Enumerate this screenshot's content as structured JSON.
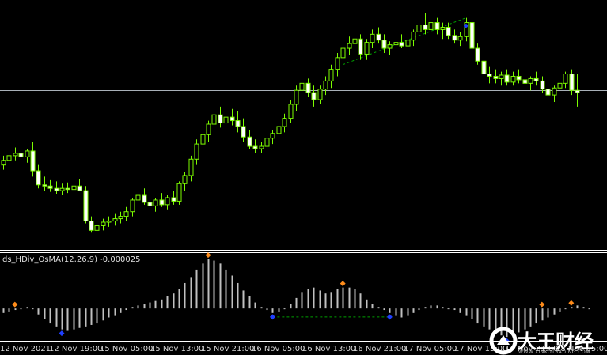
{
  "indicator": {
    "label": "ds_HDiv_OsMA(12,26,9) -0.000025"
  },
  "time_axis": {
    "labels": [
      "12 Nov 2021",
      "12 Nov 19:00",
      "15 Nov 05:00",
      "15 Nov 13:00",
      "15 Nov 21:00",
      "16 Nov 05:00",
      "16 Nov 13:00",
      "16 Nov 21:00",
      "17 Nov 05:00",
      "17 Nov 13:00",
      "17 Nov 21:00",
      "18 Nov 05:00"
    ]
  },
  "watermark": {
    "brand": "大王财经",
    "site": "WWW.XINKOTRADING.COM"
  },
  "colors": {
    "background": "#000000",
    "candle": "#7cfc00",
    "candle_body_up": "#000000",
    "candle_body_down": "#ffffff",
    "histogram": "#c0c0c0",
    "divergence_line": "#00a000",
    "marker_top": "#ff8c1a",
    "marker_bottom": "#1f3fff",
    "horizontal_line": "#a8b0b8",
    "separator": "#ffffff"
  },
  "chart_data": [
    {
      "type": "candlestick",
      "title": "",
      "candles": [
        {
          "o": 110,
          "h": 118,
          "l": 106,
          "c": 114
        },
        {
          "o": 114,
          "h": 122,
          "l": 110,
          "c": 118
        },
        {
          "o": 118,
          "h": 125,
          "l": 114,
          "c": 120
        },
        {
          "o": 120,
          "h": 126,
          "l": 115,
          "c": 117
        },
        {
          "o": 117,
          "h": 124,
          "l": 112,
          "c": 122
        },
        {
          "o": 122,
          "h": 130,
          "l": 100,
          "c": 105
        },
        {
          "o": 105,
          "h": 110,
          "l": 90,
          "c": 93
        },
        {
          "o": 93,
          "h": 100,
          "l": 88,
          "c": 92
        },
        {
          "o": 92,
          "h": 97,
          "l": 87,
          "c": 90
        },
        {
          "o": 90,
          "h": 96,
          "l": 85,
          "c": 88
        },
        {
          "o": 88,
          "h": 94,
          "l": 84,
          "c": 90
        },
        {
          "o": 90,
          "h": 95,
          "l": 86,
          "c": 89
        },
        {
          "o": 89,
          "h": 96,
          "l": 86,
          "c": 92
        },
        {
          "o": 92,
          "h": 98,
          "l": 88,
          "c": 88
        },
        {
          "o": 88,
          "h": 92,
          "l": 60,
          "c": 62
        },
        {
          "o": 62,
          "h": 66,
          "l": 52,
          "c": 54
        },
        {
          "o": 54,
          "h": 62,
          "l": 50,
          "c": 58
        },
        {
          "o": 58,
          "h": 64,
          "l": 54,
          "c": 61
        },
        {
          "o": 61,
          "h": 66,
          "l": 57,
          "c": 62
        },
        {
          "o": 62,
          "h": 68,
          "l": 58,
          "c": 64
        },
        {
          "o": 64,
          "h": 70,
          "l": 60,
          "c": 66
        },
        {
          "o": 66,
          "h": 74,
          "l": 62,
          "c": 70
        },
        {
          "o": 70,
          "h": 82,
          "l": 66,
          "c": 80
        },
        {
          "o": 80,
          "h": 88,
          "l": 76,
          "c": 84
        },
        {
          "o": 84,
          "h": 90,
          "l": 76,
          "c": 78
        },
        {
          "o": 78,
          "h": 84,
          "l": 72,
          "c": 75
        },
        {
          "o": 75,
          "h": 82,
          "l": 70,
          "c": 80
        },
        {
          "o": 80,
          "h": 86,
          "l": 74,
          "c": 76
        },
        {
          "o": 76,
          "h": 84,
          "l": 72,
          "c": 82
        },
        {
          "o": 82,
          "h": 88,
          "l": 76,
          "c": 79
        },
        {
          "o": 79,
          "h": 96,
          "l": 76,
          "c": 94
        },
        {
          "o": 94,
          "h": 104,
          "l": 88,
          "c": 101
        },
        {
          "o": 101,
          "h": 118,
          "l": 96,
          "c": 115
        },
        {
          "o": 115,
          "h": 132,
          "l": 110,
          "c": 128
        },
        {
          "o": 128,
          "h": 140,
          "l": 122,
          "c": 136
        },
        {
          "o": 136,
          "h": 148,
          "l": 130,
          "c": 145
        },
        {
          "o": 145,
          "h": 156,
          "l": 140,
          "c": 153
        },
        {
          "o": 153,
          "h": 160,
          "l": 142,
          "c": 146
        },
        {
          "o": 146,
          "h": 155,
          "l": 136,
          "c": 151
        },
        {
          "o": 151,
          "h": 158,
          "l": 144,
          "c": 148
        },
        {
          "o": 148,
          "h": 156,
          "l": 138,
          "c": 143
        },
        {
          "o": 143,
          "h": 150,
          "l": 130,
          "c": 134
        },
        {
          "o": 134,
          "h": 140,
          "l": 124,
          "c": 126
        },
        {
          "o": 126,
          "h": 132,
          "l": 120,
          "c": 124
        },
        {
          "o": 124,
          "h": 130,
          "l": 120,
          "c": 126
        },
        {
          "o": 126,
          "h": 136,
          "l": 122,
          "c": 133
        },
        {
          "o": 133,
          "h": 140,
          "l": 128,
          "c": 137
        },
        {
          "o": 137,
          "h": 146,
          "l": 132,
          "c": 143
        },
        {
          "o": 143,
          "h": 154,
          "l": 138,
          "c": 150
        },
        {
          "o": 150,
          "h": 166,
          "l": 146,
          "c": 162
        },
        {
          "o": 162,
          "h": 178,
          "l": 156,
          "c": 174
        },
        {
          "o": 174,
          "h": 186,
          "l": 168,
          "c": 180
        },
        {
          "o": 180,
          "h": 184,
          "l": 168,
          "c": 172
        },
        {
          "o": 172,
          "h": 178,
          "l": 160,
          "c": 166
        },
        {
          "o": 166,
          "h": 178,
          "l": 162,
          "c": 175
        },
        {
          "o": 175,
          "h": 186,
          "l": 170,
          "c": 182
        },
        {
          "o": 182,
          "h": 196,
          "l": 176,
          "c": 192
        },
        {
          "o": 192,
          "h": 206,
          "l": 186,
          "c": 202
        },
        {
          "o": 202,
          "h": 214,
          "l": 196,
          "c": 210
        },
        {
          "o": 210,
          "h": 220,
          "l": 204,
          "c": 214
        },
        {
          "o": 214,
          "h": 224,
          "l": 208,
          "c": 218
        },
        {
          "o": 218,
          "h": 222,
          "l": 200,
          "c": 205
        },
        {
          "o": 205,
          "h": 218,
          "l": 200,
          "c": 215
        },
        {
          "o": 215,
          "h": 226,
          "l": 210,
          "c": 222
        },
        {
          "o": 222,
          "h": 228,
          "l": 214,
          "c": 217
        },
        {
          "o": 217,
          "h": 222,
          "l": 206,
          "c": 210
        },
        {
          "o": 210,
          "h": 216,
          "l": 204,
          "c": 213
        },
        {
          "o": 213,
          "h": 220,
          "l": 208,
          "c": 215
        },
        {
          "o": 215,
          "h": 222,
          "l": 210,
          "c": 212
        },
        {
          "o": 212,
          "h": 220,
          "l": 206,
          "c": 217
        },
        {
          "o": 217,
          "h": 226,
          "l": 212,
          "c": 224
        },
        {
          "o": 224,
          "h": 234,
          "l": 218,
          "c": 230
        },
        {
          "o": 230,
          "h": 240,
          "l": 222,
          "c": 226
        },
        {
          "o": 226,
          "h": 236,
          "l": 220,
          "c": 232
        },
        {
          "o": 232,
          "h": 236,
          "l": 222,
          "c": 226
        },
        {
          "o": 226,
          "h": 232,
          "l": 218,
          "c": 228
        },
        {
          "o": 228,
          "h": 232,
          "l": 218,
          "c": 221
        },
        {
          "o": 221,
          "h": 226,
          "l": 214,
          "c": 217
        },
        {
          "o": 217,
          "h": 224,
          "l": 212,
          "c": 220
        },
        {
          "o": 220,
          "h": 236,
          "l": 216,
          "c": 232
        },
        {
          "o": 232,
          "h": 234,
          "l": 208,
          "c": 210
        },
        {
          "o": 210,
          "h": 214,
          "l": 196,
          "c": 199
        },
        {
          "o": 199,
          "h": 204,
          "l": 184,
          "c": 188
        },
        {
          "o": 188,
          "h": 194,
          "l": 180,
          "c": 186
        },
        {
          "o": 186,
          "h": 192,
          "l": 180,
          "c": 184
        },
        {
          "o": 184,
          "h": 190,
          "l": 178,
          "c": 187
        },
        {
          "o": 187,
          "h": 192,
          "l": 178,
          "c": 181
        },
        {
          "o": 181,
          "h": 190,
          "l": 178,
          "c": 186
        },
        {
          "o": 186,
          "h": 192,
          "l": 180,
          "c": 183
        },
        {
          "o": 183,
          "h": 188,
          "l": 176,
          "c": 180
        },
        {
          "o": 180,
          "h": 186,
          "l": 174,
          "c": 184
        },
        {
          "o": 184,
          "h": 190,
          "l": 178,
          "c": 182
        },
        {
          "o": 182,
          "h": 186,
          "l": 172,
          "c": 175
        },
        {
          "o": 175,
          "h": 180,
          "l": 166,
          "c": 170
        },
        {
          "o": 170,
          "h": 178,
          "l": 164,
          "c": 176
        },
        {
          "o": 176,
          "h": 184,
          "l": 172,
          "c": 180
        },
        {
          "o": 180,
          "h": 190,
          "l": 176,
          "c": 188
        },
        {
          "o": 188,
          "h": 192,
          "l": 170,
          "c": 174
        },
        {
          "o": 174,
          "h": 188,
          "l": 160,
          "c": 172
        }
      ],
      "horizontal_line": 174,
      "divergence": {
        "from": 58,
        "to": 79
      },
      "swing_markers": [
        {
          "index": 79,
          "kind": "top"
        }
      ],
      "ylim": [
        40,
        250
      ]
    },
    {
      "type": "bar",
      "title": "ds_HDiv_OsMA(12,26,9) -0.000025",
      "values": [
        -3,
        -2,
        -1,
        0,
        1,
        0,
        -4,
        -7,
        -10,
        -12,
        -14,
        -15,
        -14,
        -13,
        -12,
        -11,
        -10,
        -8,
        -6,
        -5,
        -3,
        -1,
        1,
        2,
        3,
        4,
        5,
        6,
        8,
        10,
        13,
        17,
        21,
        26,
        30,
        33,
        32,
        30,
        26,
        22,
        17,
        12,
        8,
        4,
        1,
        -1,
        -3,
        -2,
        0,
        3,
        7,
        11,
        13,
        14,
        12,
        10,
        11,
        13,
        14,
        14,
        13,
        10,
        6,
        3,
        1,
        -1,
        -3,
        -5,
        -6,
        -5,
        -3,
        -1,
        1,
        2,
        2,
        1,
        0,
        -1,
        -3,
        -5,
        -7,
        -10,
        -12,
        -14,
        -16,
        -18,
        -19,
        -18,
        -16,
        -14,
        -12,
        -10,
        -8,
        -6,
        -4,
        -2,
        0,
        1,
        2,
        1,
        0
      ],
      "ylim": [
        -20,
        36
      ],
      "markers": [
        {
          "index": 2,
          "kind": "top"
        },
        {
          "index": 10,
          "kind": "bottom"
        },
        {
          "index": 35,
          "kind": "top"
        },
        {
          "index": 46,
          "kind": "bottom"
        },
        {
          "index": 58,
          "kind": "top"
        },
        {
          "index": 66,
          "kind": "bottom"
        },
        {
          "index": 86,
          "kind": "bottom"
        },
        {
          "index": 92,
          "kind": "top"
        },
        {
          "index": 97,
          "kind": "top"
        }
      ],
      "divergence": {
        "from": 46,
        "to": 66
      }
    }
  ]
}
